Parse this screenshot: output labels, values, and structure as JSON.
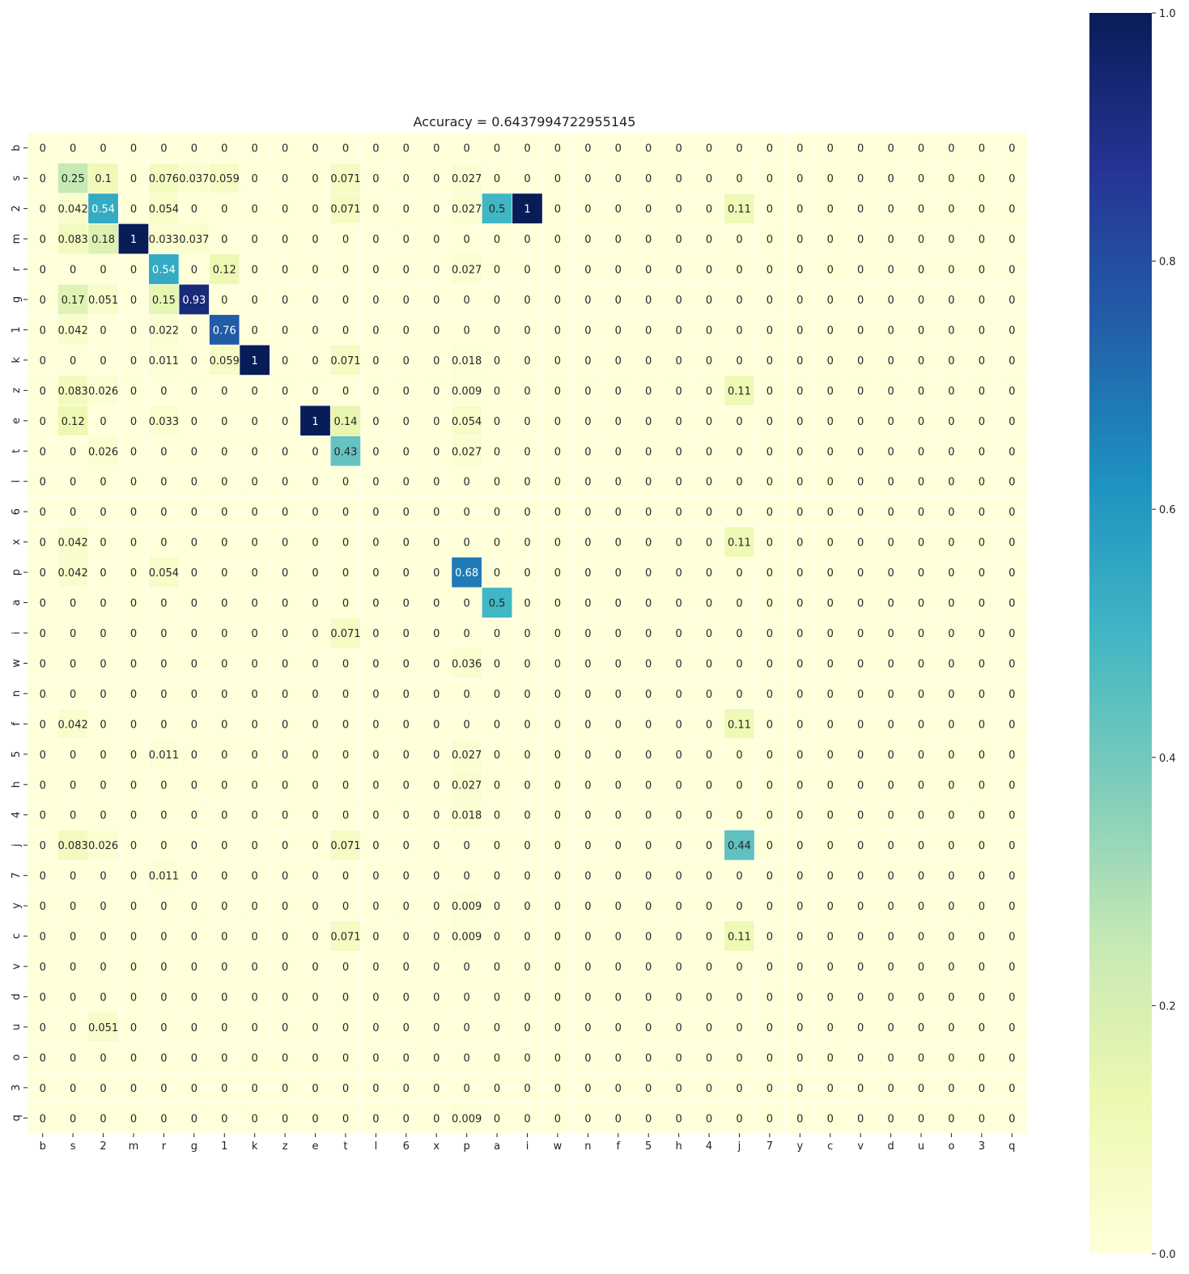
{
  "chart_data": {
    "type": "heatmap",
    "title": "Accuracy = 0.6437994722955145",
    "labels": [
      "b",
      "s",
      "2",
      "m",
      "r",
      "g",
      "1",
      "k",
      "z",
      "e",
      "t",
      "l",
      "6",
      "x",
      "p",
      "a",
      "i",
      "w",
      "n",
      "f",
      "5",
      "h",
      "4",
      "j",
      "7",
      "y",
      "c",
      "v",
      "d",
      "u",
      "o",
      "3",
      "q"
    ],
    "colormap": "YlGnBu",
    "vmin": 0.0,
    "vmax": 1.0,
    "colorbar_ticks": [
      "0.0",
      "0.2",
      "0.4",
      "0.6",
      "0.8",
      "1.0"
    ],
    "cells": [
      {
        "row": 1,
        "col": 1,
        "text": "0.25"
      },
      {
        "row": 1,
        "col": 2,
        "text": "0.1"
      },
      {
        "row": 1,
        "col": 4,
        "text": "0.076"
      },
      {
        "row": 1,
        "col": 5,
        "text": "0.037"
      },
      {
        "row": 1,
        "col": 6,
        "text": "0.059"
      },
      {
        "row": 1,
        "col": 10,
        "text": "0.071"
      },
      {
        "row": 1,
        "col": 14,
        "text": "0.027"
      },
      {
        "row": 2,
        "col": 1,
        "text": "0.042"
      },
      {
        "row": 2,
        "col": 2,
        "text": "0.54"
      },
      {
        "row": 2,
        "col": 4,
        "text": "0.054"
      },
      {
        "row": 2,
        "col": 10,
        "text": "0.071"
      },
      {
        "row": 2,
        "col": 14,
        "text": "0.027"
      },
      {
        "row": 2,
        "col": 15,
        "text": "0.5"
      },
      {
        "row": 2,
        "col": 16,
        "text": "1"
      },
      {
        "row": 2,
        "col": 23,
        "text": "0.11"
      },
      {
        "row": 3,
        "col": 1,
        "text": "0.083"
      },
      {
        "row": 3,
        "col": 2,
        "text": "0.18"
      },
      {
        "row": 3,
        "col": 3,
        "text": "1"
      },
      {
        "row": 3,
        "col": 4,
        "text": "0.033"
      },
      {
        "row": 3,
        "col": 5,
        "text": "0.037"
      },
      {
        "row": 4,
        "col": 4,
        "text": "0.54"
      },
      {
        "row": 4,
        "col": 6,
        "text": "0.12"
      },
      {
        "row": 4,
        "col": 14,
        "text": "0.027"
      },
      {
        "row": 5,
        "col": 1,
        "text": "0.17"
      },
      {
        "row": 5,
        "col": 2,
        "text": "0.051"
      },
      {
        "row": 5,
        "col": 4,
        "text": "0.15"
      },
      {
        "row": 5,
        "col": 5,
        "text": "0.93"
      },
      {
        "row": 6,
        "col": 1,
        "text": "0.042"
      },
      {
        "row": 6,
        "col": 4,
        "text": "0.022"
      },
      {
        "row": 6,
        "col": 6,
        "text": "0.76"
      },
      {
        "row": 7,
        "col": 4,
        "text": "0.011"
      },
      {
        "row": 7,
        "col": 6,
        "text": "0.059"
      },
      {
        "row": 7,
        "col": 7,
        "text": "1"
      },
      {
        "row": 7,
        "col": 10,
        "text": "0.071"
      },
      {
        "row": 7,
        "col": 14,
        "text": "0.018"
      },
      {
        "row": 8,
        "col": 1,
        "text": "0.083"
      },
      {
        "row": 8,
        "col": 2,
        "text": "0.026"
      },
      {
        "row": 8,
        "col": 14,
        "text": "0.009"
      },
      {
        "row": 8,
        "col": 23,
        "text": "0.11"
      },
      {
        "row": 9,
        "col": 1,
        "text": "0.12"
      },
      {
        "row": 9,
        "col": 4,
        "text": "0.033"
      },
      {
        "row": 9,
        "col": 9,
        "text": "1"
      },
      {
        "row": 9,
        "col": 10,
        "text": "0.14"
      },
      {
        "row": 9,
        "col": 14,
        "text": "0.054"
      },
      {
        "row": 10,
        "col": 2,
        "text": "0.026"
      },
      {
        "row": 10,
        "col": 10,
        "text": "0.43"
      },
      {
        "row": 10,
        "col": 14,
        "text": "0.027"
      },
      {
        "row": 13,
        "col": 1,
        "text": "0.042"
      },
      {
        "row": 13,
        "col": 23,
        "text": "0.11"
      },
      {
        "row": 14,
        "col": 1,
        "text": "0.042"
      },
      {
        "row": 14,
        "col": 4,
        "text": "0.054"
      },
      {
        "row": 14,
        "col": 14,
        "text": "0.68"
      },
      {
        "row": 15,
        "col": 15,
        "text": "0.5"
      },
      {
        "row": 16,
        "col": 10,
        "text": "0.071"
      },
      {
        "row": 17,
        "col": 14,
        "text": "0.036"
      },
      {
        "row": 19,
        "col": 1,
        "text": "0.042"
      },
      {
        "row": 19,
        "col": 23,
        "text": "0.11"
      },
      {
        "row": 20,
        "col": 4,
        "text": "0.011"
      },
      {
        "row": 20,
        "col": 14,
        "text": "0.027"
      },
      {
        "row": 21,
        "col": 14,
        "text": "0.027"
      },
      {
        "row": 22,
        "col": 14,
        "text": "0.018"
      },
      {
        "row": 23,
        "col": 1,
        "text": "0.083"
      },
      {
        "row": 23,
        "col": 2,
        "text": "0.026"
      },
      {
        "row": 23,
        "col": 10,
        "text": "0.071"
      },
      {
        "row": 23,
        "col": 23,
        "text": "0.44"
      },
      {
        "row": 24,
        "col": 4,
        "text": "0.011"
      },
      {
        "row": 25,
        "col": 14,
        "text": "0.009"
      },
      {
        "row": 26,
        "col": 10,
        "text": "0.071"
      },
      {
        "row": 26,
        "col": 14,
        "text": "0.009"
      },
      {
        "row": 26,
        "col": 23,
        "text": "0.11"
      },
      {
        "row": 29,
        "col": 2,
        "text": "0.051"
      },
      {
        "row": 32,
        "col": 14,
        "text": "0.009"
      }
    ],
    "default_cell_text": "0"
  }
}
